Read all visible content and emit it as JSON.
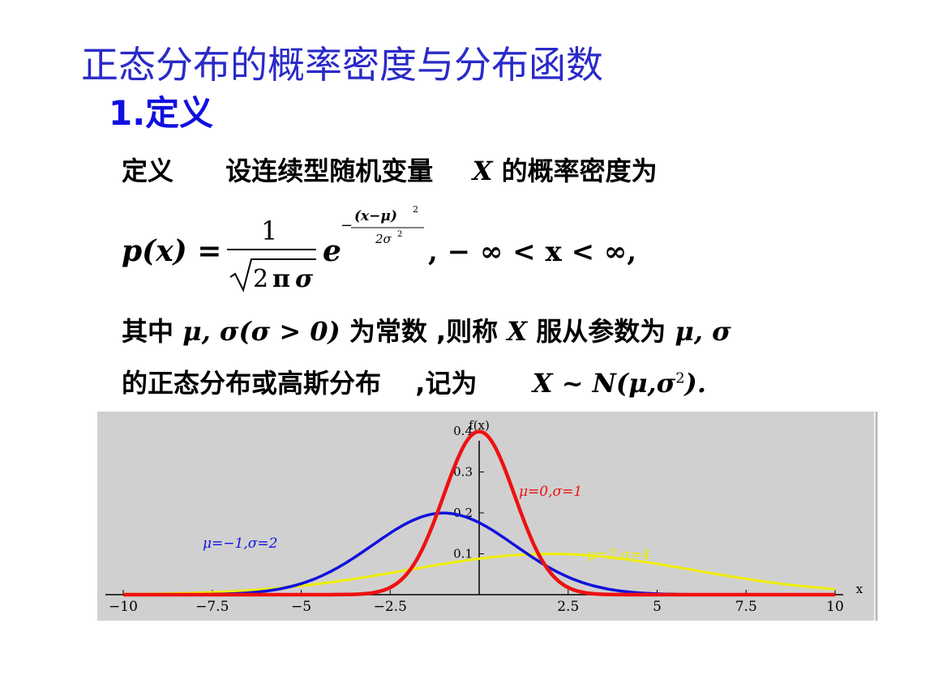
{
  "slide": {
    "title": "正态分布的概率密度与分布函数",
    "section": "1.定义",
    "def_label": "定义",
    "def_text": "设连续型随机变量",
    "def_var": "X",
    "def_tail": "的概率密度为",
    "formula": {
      "lhs": "p(x) =",
      "num": "1",
      "den_root": "2",
      "den_pi": "π",
      "den_sigma": "σ",
      "e": "e",
      "exp_sign": "−",
      "exp_num": "(x−μ)",
      "exp_num_sup": "2",
      "exp_den": "2σ",
      "exp_den_sup": "2",
      "range": ", − ∞ < x < ∞,"
    },
    "line3": {
      "a": "其中",
      "b": "μ, σ(σ > 0)",
      "c": "为常数 ,则称",
      "d": "X",
      "e": "服从参数为",
      "f": "μ, σ"
    },
    "line4": {
      "a": "的正态分布或高斯分布",
      "b": ",记为",
      "c": "X ~ N(μ,σ",
      "c_sup": "2",
      "d": ")."
    }
  },
  "chart_data": {
    "type": "line",
    "xlabel": "x",
    "ylabel": "f(x)",
    "xlim": [
      -10,
      10
    ],
    "ylim": [
      0,
      0.42
    ],
    "x_ticks": [
      "−10",
      "−7.5",
      "−5",
      "−2.5",
      "2.5",
      "5",
      "7.5",
      "10"
    ],
    "y_ticks": [
      "0.1",
      "0.2",
      "0.3",
      "0.4"
    ],
    "series": [
      {
        "name": "μ=0,σ=1",
        "mu": 0,
        "sigma": 1,
        "color": "#ee1111"
      },
      {
        "name": "μ=−1,σ=2",
        "mu": -1,
        "sigma": 2,
        "color": "#1111dd"
      },
      {
        "name": "μ=2,σ=4",
        "mu": 2,
        "sigma": 4,
        "color": "#eeee00"
      }
    ],
    "background": "#d0d0d0"
  }
}
